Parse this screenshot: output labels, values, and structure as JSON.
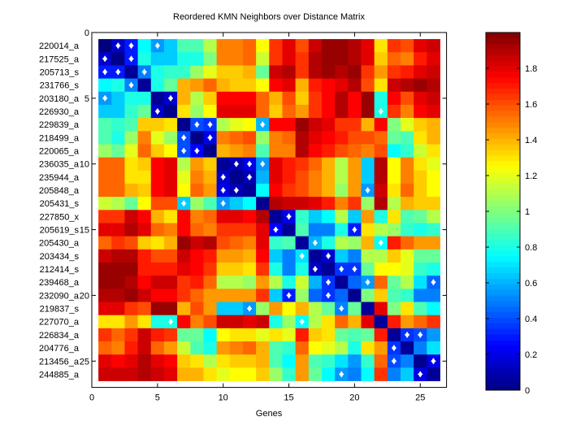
{
  "chart_data": {
    "type": "heatmap",
    "title": "Reordered KMN Neighbors over Distance Matrix",
    "xlabel": "Genes",
    "ylabel": "",
    "xlim": [
      0,
      27
    ],
    "ylim": [
      0,
      27
    ],
    "x_ticks": [
      0,
      5,
      10,
      15,
      20,
      25
    ],
    "y_ticks": [
      0,
      5,
      10,
      15,
      20,
      25
    ],
    "row_labels": [
      "220014_a",
      "217525_a",
      "205713_s",
      "231766_s",
      "203180_a",
      "226930_a",
      "229839_a",
      "218499_a",
      "220065_a",
      "236035_a",
      "235944_a",
      "205848_a",
      "205431_s",
      "227850_x",
      "205619_s",
      "205430_a",
      "203434_s",
      "212414_s",
      "239468_a",
      "232090_a",
      "219837_s",
      "227070_a",
      "226834_a",
      "204776_a",
      "213456_a",
      "244885_a"
    ],
    "colorbar": {
      "range": [
        0,
        2
      ],
      "ticks": [
        0,
        0.2,
        0.4,
        0.6,
        0.8,
        1,
        1.2,
        1.4,
        1.6,
        1.8
      ],
      "colormap": "jet"
    },
    "matrix": [
      [
        0.0,
        0.15,
        0.3,
        0.75,
        0.55,
        0.65,
        0.9,
        0.9,
        1.1,
        1.5,
        1.5,
        1.55,
        1.25,
        1.65,
        1.8,
        1.6,
        1.85,
        1.95,
        1.95,
        1.9,
        1.8,
        1.3,
        1.65,
        1.6,
        1.8,
        1.85
      ],
      [
        0.15,
        0.02,
        0.3,
        0.8,
        0.65,
        0.65,
        0.8,
        0.8,
        1.0,
        1.5,
        1.5,
        1.55,
        1.15,
        1.65,
        1.8,
        1.65,
        1.9,
        1.95,
        1.95,
        1.9,
        1.8,
        1.35,
        1.55,
        1.5,
        1.7,
        1.8
      ],
      [
        0.3,
        0.3,
        0.05,
        0.5,
        0.8,
        0.85,
        0.85,
        1.05,
        1.2,
        1.35,
        1.35,
        1.4,
        0.95,
        1.85,
        1.9,
        1.65,
        1.9,
        1.95,
        1.9,
        1.95,
        1.65,
        1.45,
        1.65,
        1.7,
        1.8,
        1.85
      ],
      [
        0.75,
        0.8,
        0.5,
        0.05,
        0.8,
        0.95,
        1.4,
        1.45,
        1.55,
        1.4,
        1.35,
        1.35,
        1.25,
        1.75,
        1.8,
        1.4,
        1.7,
        1.75,
        1.8,
        1.9,
        1.6,
        1.3,
        1.85,
        1.9,
        1.95,
        1.9
      ],
      [
        0.55,
        0.65,
        0.8,
        0.8,
        0.05,
        0.15,
        1.4,
        1.1,
        1.35,
        1.75,
        1.75,
        1.75,
        1.55,
        1.4,
        1.6,
        1.35,
        1.65,
        1.75,
        1.9,
        1.75,
        1.95,
        0.8,
        1.75,
        1.6,
        1.8,
        1.85
      ],
      [
        0.65,
        0.65,
        0.85,
        0.95,
        0.15,
        0.02,
        1.3,
        1.05,
        1.25,
        1.8,
        1.8,
        1.8,
        1.55,
        1.35,
        1.55,
        1.45,
        1.65,
        1.75,
        1.9,
        1.75,
        1.95,
        0.8,
        1.65,
        1.5,
        1.75,
        1.8
      ],
      [
        0.9,
        0.85,
        0.9,
        1.35,
        1.35,
        1.3,
        0.02,
        0.4,
        0.35,
        1.1,
        1.2,
        1.25,
        0.6,
        1.75,
        1.75,
        1.95,
        1.85,
        1.8,
        1.65,
        1.65,
        1.4,
        1.75,
        1.0,
        1.2,
        1.35,
        1.4
      ],
      [
        0.9,
        0.8,
        1.05,
        1.5,
        1.2,
        1.05,
        0.4,
        0.02,
        0.2,
        1.5,
        1.55,
        1.6,
        1.05,
        1.5,
        1.55,
        1.9,
        1.8,
        1.75,
        1.7,
        1.6,
        1.6,
        1.55,
        0.95,
        0.9,
        1.3,
        1.4
      ],
      [
        1.05,
        0.95,
        1.2,
        1.55,
        1.35,
        1.25,
        0.4,
        0.25,
        0.02,
        1.4,
        1.45,
        1.5,
        0.9,
        1.5,
        1.5,
        1.9,
        1.75,
        1.7,
        1.6,
        1.55,
        1.5,
        1.6,
        0.75,
        0.85,
        1.15,
        1.3
      ],
      [
        1.55,
        1.55,
        1.3,
        1.35,
        1.75,
        1.8,
        1.1,
        1.45,
        1.35,
        0.05,
        0.1,
        0.2,
        0.55,
        1.8,
        1.7,
        1.65,
        1.55,
        1.4,
        1.1,
        1.45,
        0.65,
        1.9,
        1.25,
        1.5,
        1.3,
        1.2
      ],
      [
        1.55,
        1.55,
        1.3,
        1.3,
        1.75,
        1.8,
        1.2,
        1.5,
        1.4,
        0.15,
        0.03,
        0.1,
        0.6,
        1.8,
        1.7,
        1.6,
        1.5,
        1.4,
        1.1,
        1.45,
        0.65,
        1.9,
        1.25,
        1.5,
        1.35,
        1.25
      ],
      [
        1.55,
        1.55,
        1.4,
        1.35,
        1.75,
        1.8,
        1.25,
        1.55,
        1.45,
        0.2,
        0.1,
        0.05,
        0.75,
        1.75,
        1.65,
        1.6,
        1.5,
        1.4,
        1.05,
        1.45,
        0.55,
        1.85,
        1.3,
        1.55,
        1.35,
        1.25
      ],
      [
        1.15,
        1.1,
        0.95,
        1.25,
        1.6,
        1.6,
        0.65,
        1.05,
        0.9,
        0.55,
        0.65,
        0.75,
        0.03,
        1.9,
        1.85,
        1.85,
        1.8,
        1.7,
        1.5,
        1.65,
        1.05,
        1.9,
        1.1,
        1.4,
        1.35,
        1.35
      ],
      [
        1.65,
        1.65,
        1.85,
        1.75,
        1.4,
        1.3,
        1.75,
        1.5,
        1.55,
        1.8,
        1.8,
        1.75,
        1.9,
        0.05,
        0.2,
        0.85,
        0.65,
        0.75,
        1.1,
        0.65,
        1.45,
        0.8,
        1.3,
        0.9,
        0.95,
        1.1
      ],
      [
        1.8,
        1.8,
        1.9,
        1.8,
        1.55,
        1.5,
        1.75,
        1.55,
        1.5,
        1.65,
        1.65,
        1.65,
        1.8,
        0.25,
        0.05,
        0.9,
        0.5,
        0.5,
        0.8,
        0.3,
        1.3,
        1.1,
        1.05,
        0.85,
        0.8,
        0.85
      ],
      [
        1.55,
        1.65,
        1.6,
        1.35,
        1.3,
        1.4,
        1.95,
        1.85,
        1.9,
        1.6,
        1.55,
        1.5,
        1.8,
        0.85,
        0.9,
        0.05,
        0.6,
        0.8,
        1.1,
        1.05,
        1.4,
        0.75,
        1.7,
        1.55,
        1.45,
        1.45
      ],
      [
        1.85,
        1.9,
        1.9,
        1.7,
        1.6,
        1.6,
        1.85,
        1.75,
        1.7,
        1.45,
        1.45,
        1.4,
        1.75,
        0.65,
        0.5,
        0.7,
        0.05,
        0.15,
        0.65,
        0.5,
        1.1,
        1.1,
        1.35,
        1.2,
        0.95,
        0.95
      ],
      [
        1.95,
        1.95,
        1.95,
        1.7,
        1.7,
        1.7,
        1.8,
        1.75,
        1.65,
        1.35,
        1.35,
        1.3,
        1.65,
        0.8,
        0.5,
        0.8,
        0.15,
        0.05,
        0.35,
        0.35,
        0.95,
        1.25,
        1.25,
        1.2,
        0.85,
        0.8
      ],
      [
        1.95,
        1.95,
        1.9,
        1.75,
        1.85,
        1.85,
        1.65,
        1.7,
        1.55,
        1.1,
        1.1,
        1.05,
        1.45,
        1.1,
        0.8,
        1.15,
        0.6,
        0.35,
        0.05,
        0.45,
        0.55,
        1.55,
        0.95,
        1.1,
        0.7,
        0.45
      ],
      [
        1.9,
        1.9,
        1.95,
        1.85,
        1.75,
        1.75,
        1.65,
        1.55,
        1.45,
        1.45,
        1.45,
        1.45,
        1.65,
        0.65,
        0.3,
        1.05,
        0.45,
        0.35,
        0.45,
        0.03,
        1.0,
        1.35,
        0.9,
        0.85,
        0.5,
        0.5
      ],
      [
        1.8,
        1.8,
        1.65,
        1.6,
        1.95,
        1.95,
        1.4,
        1.6,
        1.45,
        0.65,
        0.65,
        0.55,
        1.05,
        1.45,
        1.25,
        1.4,
        1.1,
        0.95,
        0.5,
        0.95,
        0.05,
        1.8,
        1.0,
        1.3,
        0.9,
        0.75
      ],
      [
        1.3,
        1.3,
        1.45,
        1.3,
        0.8,
        0.8,
        1.75,
        1.5,
        1.6,
        1.85,
        1.85,
        1.8,
        1.85,
        0.8,
        1.05,
        0.75,
        1.1,
        1.3,
        1.55,
        1.4,
        1.8,
        0.05,
        1.7,
        1.45,
        1.55,
        1.65
      ],
      [
        1.65,
        1.55,
        1.65,
        1.85,
        1.7,
        1.65,
        0.95,
        0.95,
        0.75,
        1.25,
        1.3,
        1.3,
        1.2,
        1.3,
        1.2,
        1.7,
        1.35,
        1.3,
        0.95,
        0.9,
        0.95,
        1.7,
        0.05,
        0.35,
        0.4,
        0.55
      ],
      [
        1.55,
        1.5,
        1.7,
        1.85,
        1.55,
        1.45,
        1.15,
        0.9,
        0.8,
        1.45,
        1.5,
        1.55,
        1.4,
        0.9,
        0.85,
        1.55,
        1.25,
        1.2,
        1.1,
        0.8,
        1.3,
        1.45,
        0.35,
        0.05,
        0.5,
        0.7
      ],
      [
        1.8,
        1.75,
        1.8,
        1.9,
        1.8,
        1.75,
        1.35,
        1.3,
        1.1,
        1.3,
        1.35,
        1.35,
        1.4,
        0.9,
        0.75,
        1.45,
        0.9,
        0.85,
        0.7,
        0.55,
        0.85,
        1.55,
        0.4,
        0.5,
        0.03,
        0.2
      ],
      [
        1.85,
        1.85,
        1.85,
        1.9,
        1.85,
        1.8,
        1.4,
        1.4,
        1.3,
        1.2,
        1.25,
        1.25,
        1.35,
        1.05,
        0.85,
        1.45,
        0.95,
        0.75,
        0.55,
        0.5,
        0.75,
        1.65,
        0.5,
        0.65,
        0.2,
        0.05
      ]
    ],
    "neighbors": [
      [
        1,
        2
      ],
      [
        1,
        3
      ],
      [
        1,
        5
      ],
      [
        2,
        1
      ],
      [
        2,
        3
      ],
      [
        3,
        1
      ],
      [
        3,
        2
      ],
      [
        3,
        4
      ],
      [
        4,
        3
      ],
      [
        5,
        1
      ],
      [
        5,
        6
      ],
      [
        6,
        5
      ],
      [
        6,
        22
      ],
      [
        7,
        8
      ],
      [
        7,
        9
      ],
      [
        7,
        13
      ],
      [
        8,
        7
      ],
      [
        8,
        9
      ],
      [
        9,
        7
      ],
      [
        9,
        8
      ],
      [
        10,
        11
      ],
      [
        10,
        12
      ],
      [
        10,
        13
      ],
      [
        11,
        10
      ],
      [
        11,
        12
      ],
      [
        12,
        10
      ],
      [
        12,
        11
      ],
      [
        12,
        21
      ],
      [
        13,
        7
      ],
      [
        13,
        10
      ],
      [
        14,
        15
      ],
      [
        15,
        14
      ],
      [
        15,
        20
      ],
      [
        16,
        17
      ],
      [
        16,
        22
      ],
      [
        17,
        16
      ],
      [
        17,
        18
      ],
      [
        18,
        17
      ],
      [
        18,
        19
      ],
      [
        18,
        20
      ],
      [
        19,
        18
      ],
      [
        19,
        21
      ],
      [
        19,
        26
      ],
      [
        20,
        15
      ],
      [
        20,
        18
      ],
      [
        21,
        19
      ],
      [
        21,
        12
      ],
      [
        22,
        6
      ],
      [
        22,
        16
      ],
      [
        23,
        24
      ],
      [
        23,
        25
      ],
      [
        24,
        23
      ],
      [
        25,
        23
      ],
      [
        25,
        26
      ],
      [
        26,
        19
      ],
      [
        26,
        25
      ]
    ]
  }
}
